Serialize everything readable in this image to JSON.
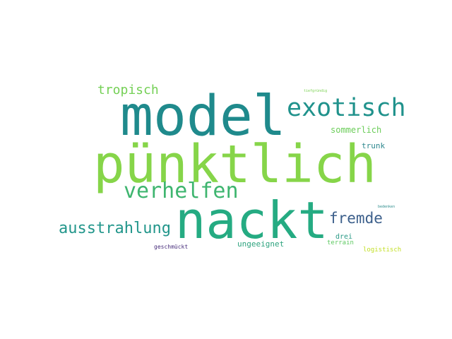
{
  "word_cloud": {
    "words": [
      {
        "text": "model",
        "color": "#1f8a8c"
      },
      {
        "text": "pünktlich",
        "color": "#86d549"
      },
      {
        "text": "nackt",
        "color": "#25ab82"
      },
      {
        "text": "exotisch",
        "color": "#20928c"
      },
      {
        "text": "verhelfen",
        "color": "#3eb56f"
      },
      {
        "text": "ausstrahlung",
        "color": "#22968b"
      },
      {
        "text": "tropisch",
        "color": "#74d055"
      },
      {
        "text": "fremde",
        "color": "#3c5f8b"
      },
      {
        "text": "sommerlich",
        "color": "#6ccd5a"
      },
      {
        "text": "trunk",
        "color": "#2d878e"
      },
      {
        "text": "ungeeignet",
        "color": "#2da37e"
      },
      {
        "text": "drei",
        "color": "#2a9a86"
      },
      {
        "text": "terrain",
        "color": "#5ec962"
      },
      {
        "text": "logistisch",
        "color": "#c2df23"
      },
      {
        "text": "geschmückt",
        "color": "#472d7b"
      },
      {
        "text": "tiefgründig",
        "color": "#7ad151"
      },
      {
        "text": "bedenken",
        "color": "#2c8c8c"
      }
    ]
  }
}
